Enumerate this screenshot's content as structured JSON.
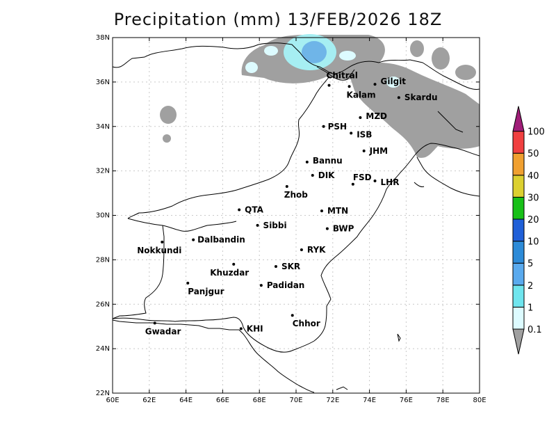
{
  "title": "Precipitation (mm) 13/FEB/2026 18Z",
  "axes": {
    "lon_range": [
      60,
      80
    ],
    "lat_range": [
      22,
      38
    ],
    "x_ticks": [
      "60E",
      "62E",
      "64E",
      "66E",
      "68E",
      "70E",
      "72E",
      "74E",
      "76E",
      "78E",
      "80E"
    ],
    "y_ticks": [
      "22N",
      "24N",
      "26N",
      "28N",
      "30N",
      "32N",
      "34N",
      "36N",
      "38N"
    ],
    "grid": true
  },
  "colorbar": {
    "levels": [
      "0.1",
      "1",
      "2",
      "5",
      "10",
      "20",
      "30",
      "40",
      "50",
      "100"
    ],
    "colors": [
      "#a0a0a0",
      "#ddfbff",
      "#6fe5ee",
      "#5aaaee",
      "#2d8bd8",
      "#2060d8",
      "#18c018",
      "#dcd030",
      "#f0a030",
      "#f04040",
      "#a01e78"
    ]
  },
  "cities": [
    {
      "name": "Chitral",
      "lon": 71.8,
      "lat": 35.85
    },
    {
      "name": "Gilgit",
      "lon": 74.3,
      "lat": 35.9
    },
    {
      "name": "Kalam",
      "lon": 72.9,
      "lat": 35.8
    },
    {
      "name": "Skardu",
      "lon": 75.6,
      "lat": 35.3
    },
    {
      "name": "MZD",
      "lon": 73.5,
      "lat": 34.4
    },
    {
      "name": "PSH",
      "lon": 71.5,
      "lat": 34.0
    },
    {
      "name": "ISB",
      "lon": 73.0,
      "lat": 33.7
    },
    {
      "name": "JHM",
      "lon": 73.7,
      "lat": 32.9
    },
    {
      "name": "Bannu",
      "lon": 70.6,
      "lat": 32.4
    },
    {
      "name": "DIK",
      "lon": 70.9,
      "lat": 31.8
    },
    {
      "name": "FSD",
      "lon": 73.1,
      "lat": 31.4
    },
    {
      "name": "LHR",
      "lon": 74.3,
      "lat": 31.55
    },
    {
      "name": "Zhob",
      "lon": 69.5,
      "lat": 31.3
    },
    {
      "name": "QTA",
      "lon": 66.9,
      "lat": 30.25
    },
    {
      "name": "MTN",
      "lon": 71.4,
      "lat": 30.2
    },
    {
      "name": "Sibbi",
      "lon": 67.9,
      "lat": 29.55
    },
    {
      "name": "BWP",
      "lon": 71.7,
      "lat": 29.4
    },
    {
      "name": "Dalbandin",
      "lon": 64.4,
      "lat": 28.9
    },
    {
      "name": "Nokkundi",
      "lon": 62.7,
      "lat": 28.8
    },
    {
      "name": "RYK",
      "lon": 70.3,
      "lat": 28.45
    },
    {
      "name": "Khuzdar",
      "lon": 66.6,
      "lat": 27.8
    },
    {
      "name": "SKR",
      "lon": 68.9,
      "lat": 27.7
    },
    {
      "name": "Panjgur",
      "lon": 64.1,
      "lat": 26.95
    },
    {
      "name": "Padidan",
      "lon": 68.1,
      "lat": 26.85
    },
    {
      "name": "Chhor",
      "lon": 69.8,
      "lat": 25.5
    },
    {
      "name": "KHI",
      "lon": 67.0,
      "lat": 24.9
    },
    {
      "name": "Gwadar",
      "lon": 62.3,
      "lat": 25.15
    }
  ]
}
